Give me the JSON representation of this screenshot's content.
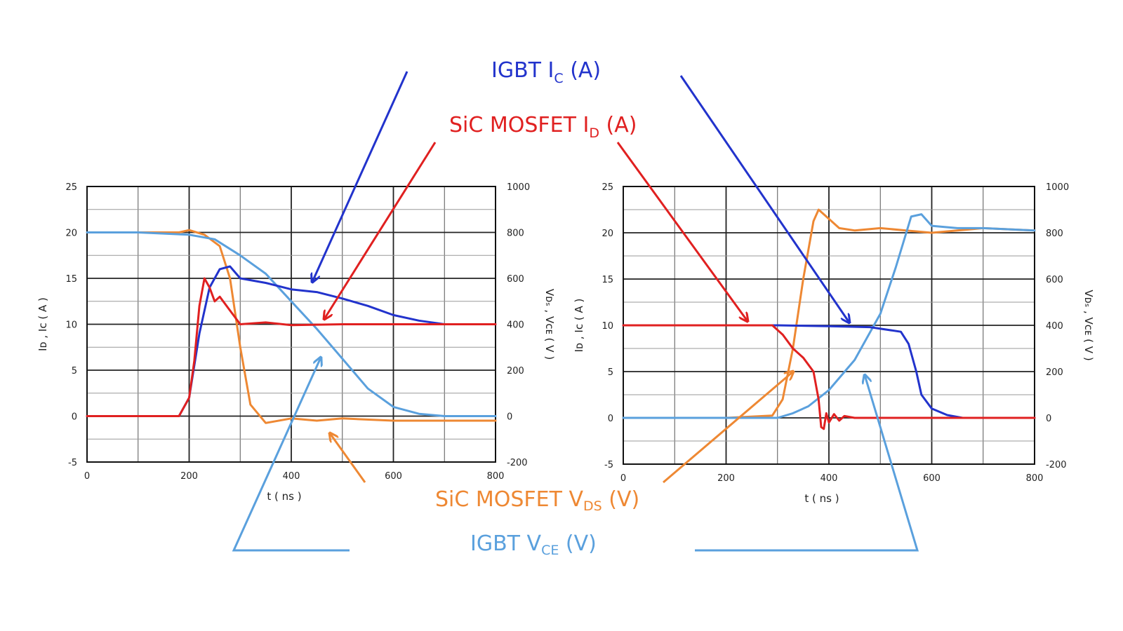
{
  "colors": {
    "igbt_ic": "#2233cc",
    "sic_id": "#e02020",
    "sic_vds": "#ee8833",
    "igbt_vce": "#5aa0dd"
  },
  "labels": {
    "igbt_ic": {
      "main": "IGBT  I",
      "sub": "C",
      "unit": " (A)"
    },
    "sic_id": {
      "main": "SiC MOSFET  I",
      "sub": "D",
      "unit": " (A)"
    },
    "sic_vds": {
      "main": "SiC MOSFET V",
      "sub": "DS",
      "unit": " (V)"
    },
    "igbt_vce": {
      "main": "IGBT V",
      "sub": "CE",
      "unit": " (V)"
    }
  },
  "chart_data": [
    {
      "type": "line",
      "xlabel": "t ( ns )",
      "ylabel_left": "Iᴅ , Iᴄ  ( A )",
      "ylabel_right": "Vᴅₛ , Vᴄᴇ  ( V )",
      "xlim": [
        0,
        800
      ],
      "ylim_left": [
        -5,
        25
      ],
      "ylim_right": [
        -200,
        1000
      ],
      "x_ticks": [
        "0",
        "200",
        "400",
        "600",
        "800"
      ],
      "y_ticks_left": [
        "-5",
        "0",
        "5",
        "10",
        "15",
        "20",
        "25"
      ],
      "y_ticks_right": [
        "-200",
        "0",
        "200",
        "400",
        "600",
        "800",
        "1000"
      ],
      "grid": true,
      "series": [
        {
          "name": "SiC MOSFET V_DS (V)",
          "axis": "right",
          "color_key": "sic_vds",
          "x": [
            0,
            100,
            180,
            200,
            230,
            260,
            280,
            300,
            320,
            350,
            400,
            450,
            500,
            600,
            700,
            800
          ],
          "y": [
            800,
            800,
            800,
            810,
            790,
            740,
            600,
            300,
            50,
            -30,
            -10,
            -20,
            -10,
            -20,
            -20,
            -20
          ]
        },
        {
          "name": "IGBT V_CE (V)",
          "axis": "right",
          "color_key": "igbt_vce",
          "x": [
            0,
            100,
            200,
            250,
            300,
            350,
            400,
            450,
            500,
            550,
            600,
            650,
            700,
            800
          ],
          "y": [
            800,
            800,
            790,
            770,
            700,
            620,
            500,
            380,
            250,
            120,
            40,
            10,
            0,
            0
          ]
        },
        {
          "name": "IGBT I_C (A)",
          "axis": "left",
          "color_key": "igbt_ic",
          "x": [
            0,
            100,
            180,
            200,
            220,
            240,
            260,
            280,
            300,
            350,
            400,
            450,
            500,
            550,
            600,
            650,
            700,
            800
          ],
          "y": [
            0,
            0,
            0,
            2,
            9,
            14,
            16,
            16.3,
            15,
            14.5,
            13.8,
            13.5,
            12.8,
            12,
            11,
            10.4,
            10,
            10
          ]
        },
        {
          "name": "SiC MOSFET I_D (A)",
          "axis": "left",
          "color_key": "sic_id",
          "x": [
            0,
            100,
            180,
            200,
            210,
            220,
            230,
            240,
            250,
            260,
            280,
            300,
            350,
            400,
            500,
            600,
            700,
            800
          ],
          "y": [
            0,
            0,
            0,
            2,
            6,
            12,
            15,
            14,
            12.5,
            13,
            11.5,
            10,
            10.2,
            9.9,
            10,
            10,
            10,
            10
          ]
        }
      ]
    },
    {
      "type": "line",
      "xlabel": "t ( ns )",
      "ylabel_left": "Iᴅ , Iᴄ  ( A )",
      "ylabel_right": "Vᴅₛ , Vᴄᴇ  ( V )",
      "xlim": [
        0,
        800
      ],
      "ylim_left": [
        -5,
        25
      ],
      "ylim_right": [
        -200,
        1000
      ],
      "x_ticks": [
        "0",
        "200",
        "400",
        "600",
        "800"
      ],
      "y_ticks_left": [
        "-5",
        "0",
        "5",
        "10",
        "15",
        "20",
        "25"
      ],
      "y_ticks_right": [
        "-200",
        "0",
        "200",
        "400",
        "600",
        "800",
        "1000"
      ],
      "grid": true,
      "series": [
        {
          "name": "SiC MOSFET V_DS (V)",
          "axis": "right",
          "color_key": "sic_vds",
          "x": [
            0,
            100,
            200,
            290,
            310,
            330,
            350,
            370,
            380,
            390,
            420,
            450,
            500,
            550,
            600,
            650,
            700,
            800
          ],
          "y": [
            0,
            0,
            0,
            10,
            80,
            300,
            600,
            850,
            900,
            880,
            820,
            810,
            820,
            810,
            800,
            810,
            820,
            810
          ]
        },
        {
          "name": "IGBT V_CE (V)",
          "axis": "right",
          "color_key": "igbt_vce",
          "x": [
            0,
            200,
            300,
            330,
            360,
            400,
            450,
            500,
            530,
            560,
            580,
            600,
            650,
            700,
            800
          ],
          "y": [
            0,
            0,
            0,
            20,
            50,
            120,
            250,
            450,
            650,
            870,
            880,
            830,
            820,
            820,
            810
          ]
        },
        {
          "name": "IGBT I_C (A)",
          "axis": "left",
          "color_key": "igbt_ic",
          "x": [
            0,
            200,
            300,
            400,
            480,
            540,
            555,
            570,
            580,
            600,
            630,
            660,
            700,
            800
          ],
          "y": [
            10,
            10,
            10,
            9.9,
            9.8,
            9.3,
            8,
            5,
            2.5,
            1,
            0.3,
            0,
            0,
            0
          ]
        },
        {
          "name": "SiC MOSFET I_D (A)",
          "axis": "left",
          "color_key": "sic_id",
          "x": [
            0,
            200,
            290,
            310,
            330,
            350,
            370,
            380,
            385,
            390,
            395,
            400,
            410,
            420,
            430,
            450,
            500,
            600,
            800
          ],
          "y": [
            10,
            10,
            10,
            9,
            7.5,
            6.5,
            5,
            2,
            -1,
            -1.2,
            0.5,
            -0.5,
            0.4,
            -0.3,
            0.2,
            0,
            0,
            0,
            0
          ]
        }
      ]
    }
  ]
}
